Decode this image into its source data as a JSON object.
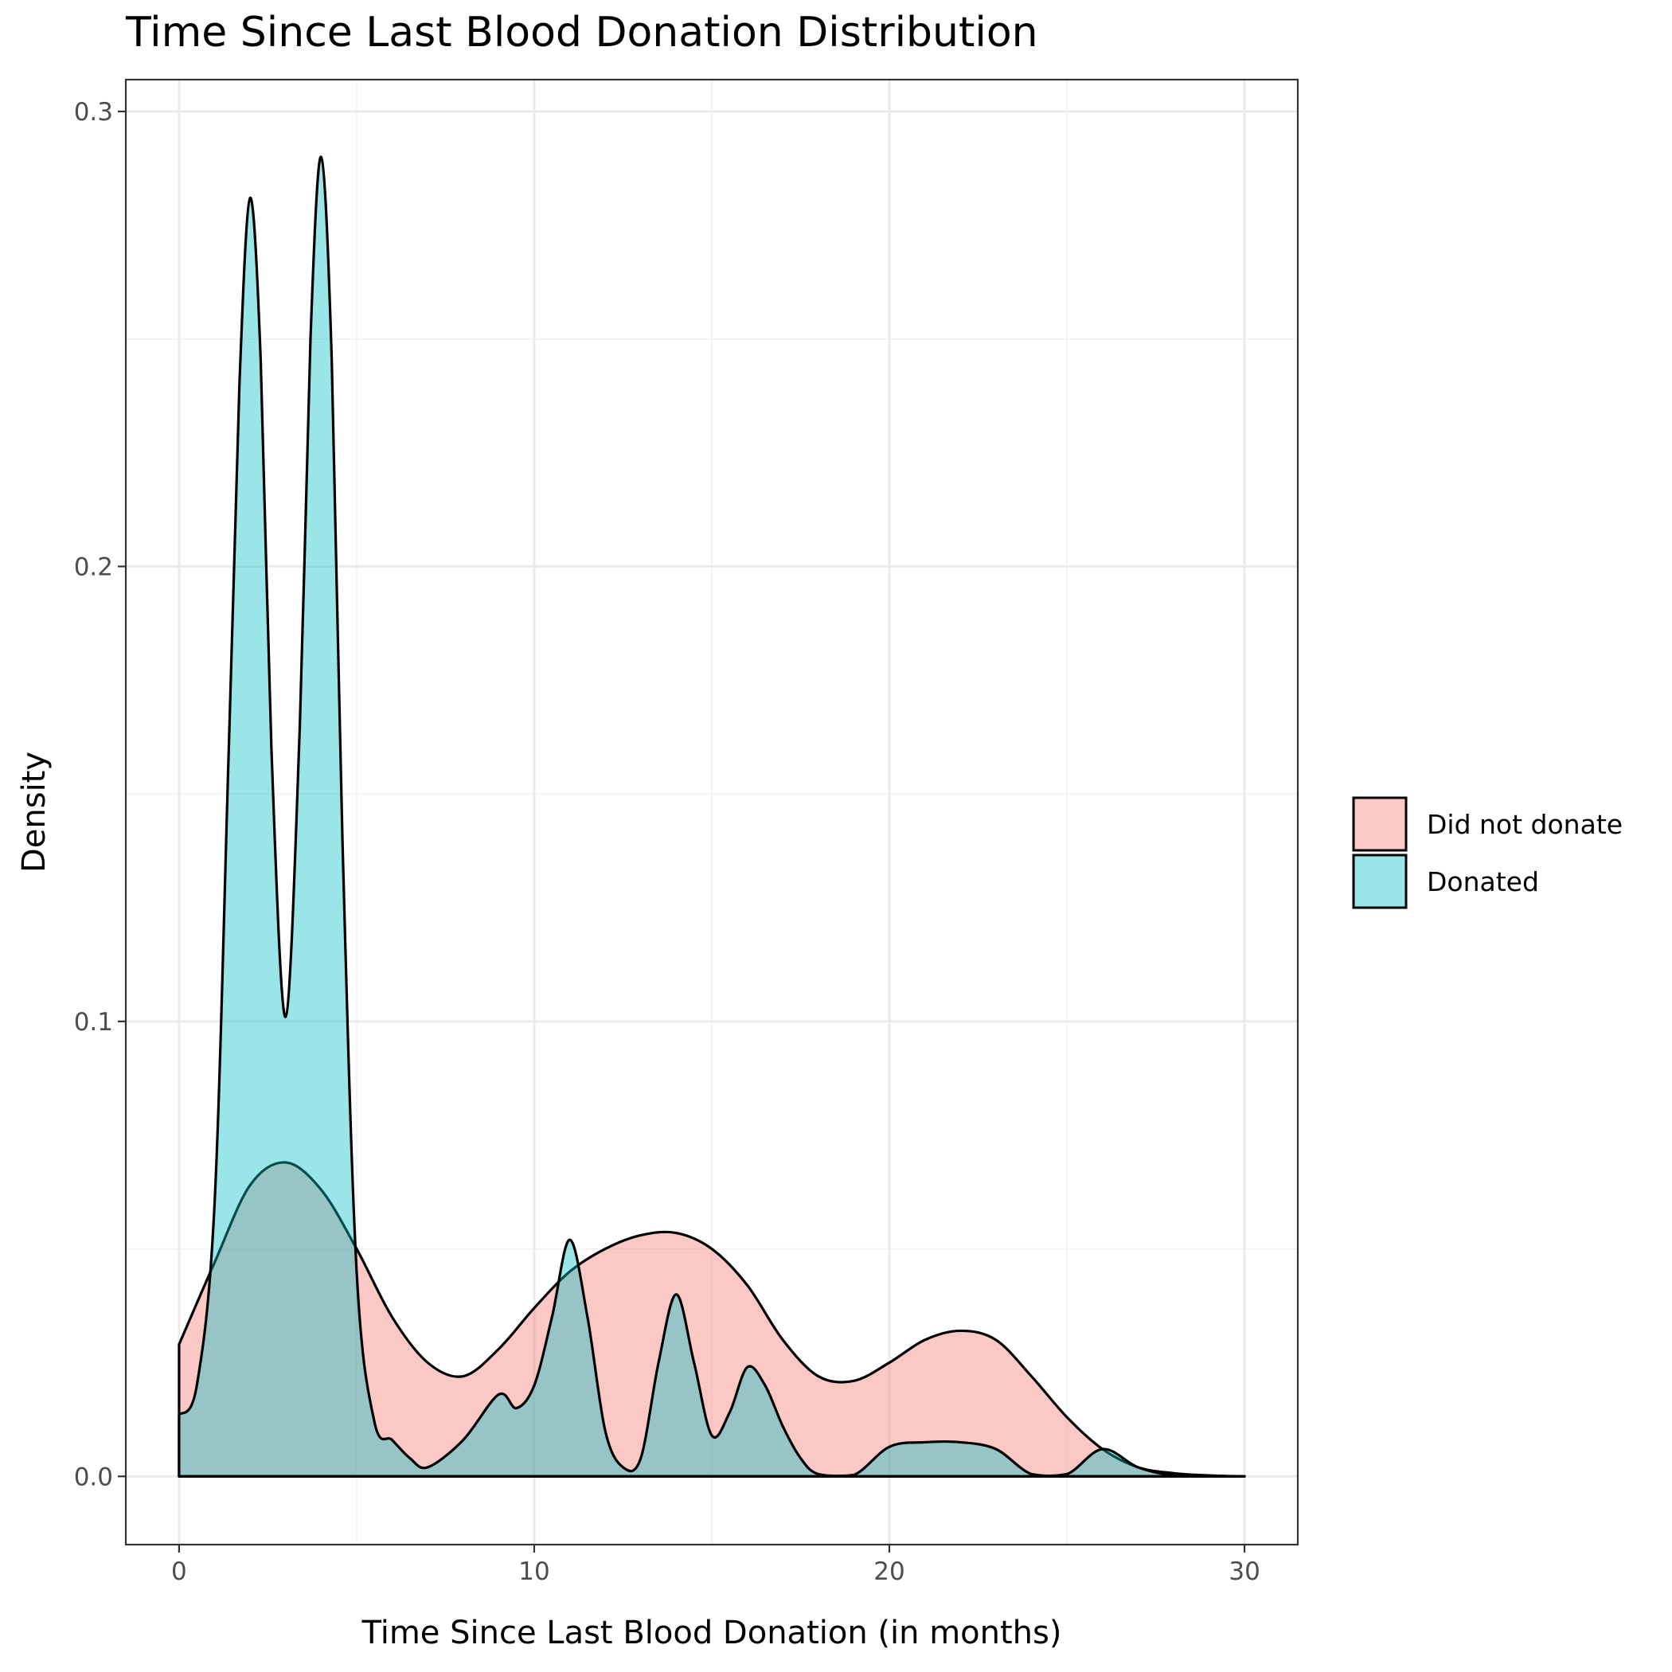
{
  "chart_data": {
    "type": "area",
    "title": "Time Since Last Blood Donation Distribution",
    "xlabel": "Time Since Last Blood Donation (in months)",
    "ylabel": "Density",
    "xlim": [
      -1.5,
      31.5
    ],
    "ylim": [
      -0.015,
      0.307
    ],
    "x_ticks": [
      0,
      10,
      20,
      30
    ],
    "x_tick_labels": [
      "0",
      "10",
      "20",
      "30"
    ],
    "y_ticks": [
      0.0,
      0.1,
      0.2,
      0.3
    ],
    "y_tick_labels": [
      "0.0",
      "0.1",
      "0.2",
      "0.3"
    ],
    "grid": true,
    "legend_position": "right",
    "series": [
      {
        "name": "Did not donate",
        "color": "#F8766D",
        "fill_opacity": 0.4,
        "x": [
          0,
          1,
          2,
          3,
          4,
          5,
          6,
          7,
          8,
          9,
          10,
          11,
          12,
          13,
          14,
          15,
          16,
          17,
          18,
          19,
          20,
          21,
          22,
          23,
          24,
          25,
          26,
          27,
          28,
          29,
          30
        ],
        "y": [
          0.029,
          0.047,
          0.064,
          0.069,
          0.063,
          0.05,
          0.035,
          0.025,
          0.022,
          0.028,
          0.037,
          0.045,
          0.05,
          0.053,
          0.0535,
          0.05,
          0.042,
          0.03,
          0.022,
          0.021,
          0.025,
          0.03,
          0.032,
          0.03,
          0.022,
          0.013,
          0.006,
          0.002,
          0.0007,
          0.0002,
          0.0
        ]
      },
      {
        "name": "Donated",
        "color": "#00BFC4",
        "fill_opacity": 0.4,
        "x": [
          0,
          0.5,
          1,
          1.4,
          1.7,
          2,
          2.3,
          2.6,
          3,
          3.4,
          3.7,
          4,
          4.3,
          4.6,
          5,
          5.5,
          6,
          6.5,
          7,
          8,
          9,
          9.5,
          10,
          10.5,
          11,
          11.5,
          12,
          12.5,
          13,
          13.5,
          14,
          14.5,
          15,
          15.5,
          16,
          16.5,
          17,
          17.5,
          18,
          19,
          20,
          21,
          22,
          23,
          24,
          25,
          26,
          27,
          28,
          29,
          30
        ],
        "y": [
          0.0135,
          0.02,
          0.06,
          0.16,
          0.24,
          0.281,
          0.245,
          0.16,
          0.101,
          0.165,
          0.25,
          0.29,
          0.245,
          0.14,
          0.045,
          0.012,
          0.008,
          0.004,
          0.002,
          0.008,
          0.018,
          0.015,
          0.02,
          0.035,
          0.052,
          0.035,
          0.01,
          0.002,
          0.004,
          0.025,
          0.04,
          0.025,
          0.009,
          0.014,
          0.024,
          0.02,
          0.011,
          0.004,
          0.0005,
          0.0003,
          0.0065,
          0.0075,
          0.0075,
          0.006,
          0.0005,
          0.0005,
          0.006,
          0.002,
          0.0002,
          0.0,
          0.0
        ]
      }
    ]
  }
}
